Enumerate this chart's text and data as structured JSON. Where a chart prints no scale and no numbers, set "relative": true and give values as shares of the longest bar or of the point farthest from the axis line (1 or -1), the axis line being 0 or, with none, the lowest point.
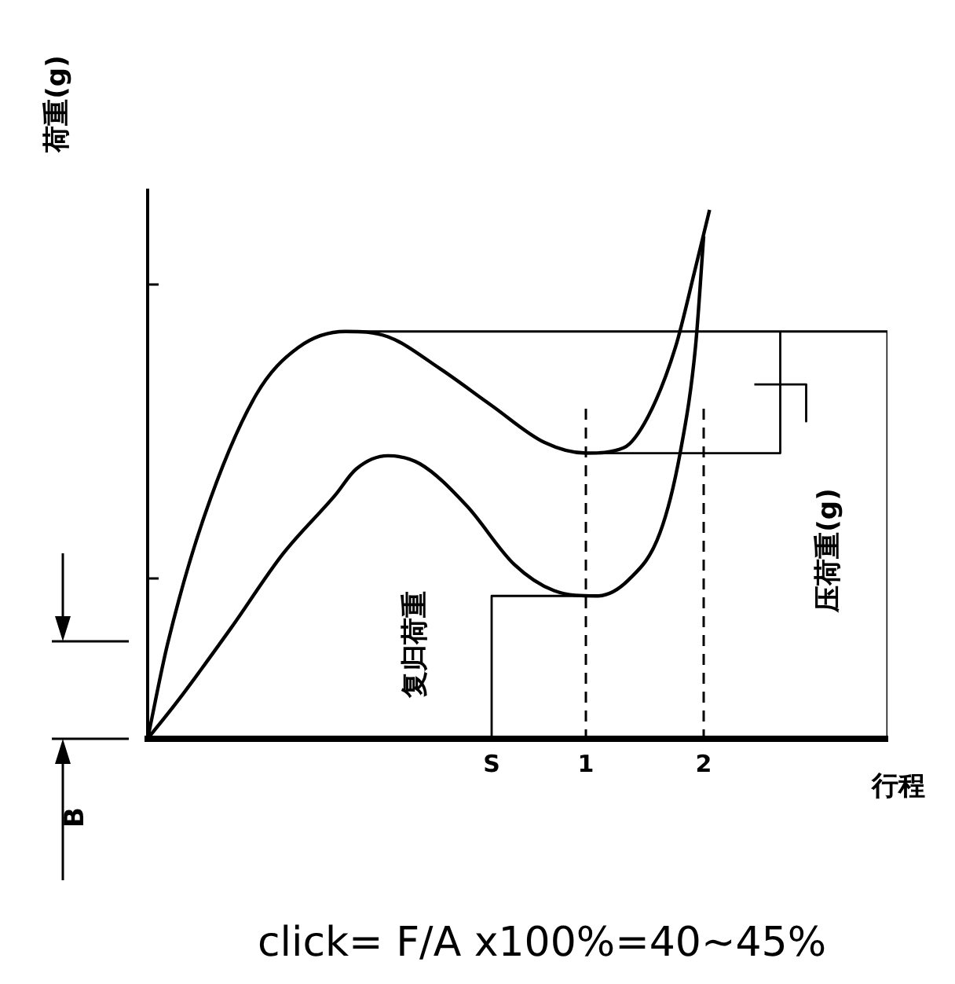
{
  "chart_data": {
    "type": "line",
    "relative": true,
    "ylabel": "荷重(g)",
    "xlabel": "行程",
    "xlim": [
      -2.72,
      3.56
    ],
    "xticks": [
      {
        "value": 0.2,
        "label": "S"
      },
      1,
      2
    ],
    "series": [
      {
        "color": "#000000",
        "x": [
          -2.72,
          -2.55,
          -2.24,
          -1.8,
          -1.44,
          -1.04,
          -0.68,
          -0.24,
          0.2,
          0.65,
          1.0,
          1.32,
          1.53,
          1.76,
          1.93,
          2.05
        ],
        "values": [
          0,
          0.18,
          0.42,
          0.65,
          0.74,
          0.77,
          0.76,
          0.7,
          0.63,
          0.56,
          0.54,
          0.55,
          0.61,
          0.74,
          0.89,
          1.0
        ]
      },
      {
        "color": "#000000",
        "x": [
          -2.72,
          -2.47,
          -2.01,
          -1.57,
          -1.13,
          -0.95,
          -0.68,
          -0.41,
          -0.01,
          0.39,
          0.73,
          1.09,
          1.36,
          1.63,
          1.8,
          1.93,
          2.0
        ],
        "values": [
          0,
          0.07,
          0.21,
          0.35,
          0.46,
          0.51,
          0.535,
          0.52,
          0.44,
          0.33,
          0.28,
          0.27,
          0.3,
          0.39,
          0.54,
          0.74,
          0.95
        ]
      },
      {
        "color": "#000000",
        "x": [
          -1.04,
          3.56,
          3.56
        ],
        "values": [
          0.77,
          0.77,
          0
        ]
      },
      {
        "color": "#000000",
        "x": [
          1.0,
          2.65,
          2.65
        ],
        "values": [
          0.54,
          0.54,
          0.77
        ]
      },
      {
        "color": "#000000",
        "x": [
          2.43,
          2.87,
          2.87
        ],
        "values": [
          0.67,
          0.67,
          0.6
        ]
      },
      {
        "color": "#000000",
        "x": [
          0.2,
          0.2,
          1.0
        ],
        "values": [
          0,
          0.27,
          0.27
        ]
      }
    ],
    "ref_lines": [
      {
        "axis": "x",
        "value": 1,
        "color": "#000000",
        "line_style": "dashed"
      },
      {
        "axis": "x",
        "value": 2,
        "color": "#000000",
        "line_style": "dashed"
      }
    ],
    "annotations": [
      "复归荷重",
      "压荷重(g)",
      "B",
      "click= F/A x100%=40~45%"
    ],
    "grid": false,
    "legend": false,
    "marker": "none",
    "line_style": "solid"
  }
}
